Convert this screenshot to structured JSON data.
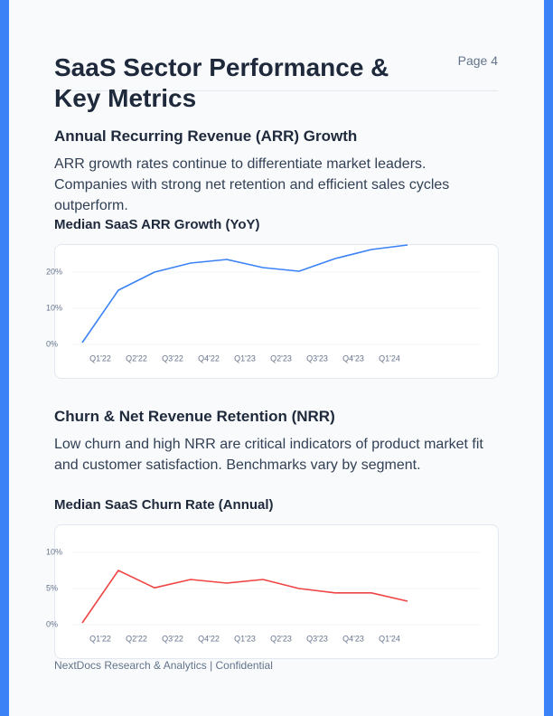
{
  "header": {
    "title": "SaaS Sector Performance & Key Metrics",
    "page": "Page 4"
  },
  "sections": [
    {
      "heading": "Annual Recurring Revenue (ARR) Growth",
      "text": "ARR growth rates continue to differentiate market leaders. Companies with strong net retention and efficient sales cycles outperform.",
      "chart": {
        "type": "line",
        "title": "Median SaaS ARR Growth (YoY)",
        "categories": [
          "Q1'22",
          "Q2'22",
          "Q3'22",
          "Q4'22",
          "Q1'23",
          "Q2'23",
          "Q3'23",
          "Q4'23",
          "Q1'24",
          null
        ],
        "values": [
          0.5,
          15,
          20,
          22.5,
          23.5,
          21.25,
          20.25,
          23.75,
          26.25,
          27.5
        ],
        "color": "#3b82f6",
        "ylim": [
          0,
          27.5
        ],
        "yticks": [
          {
            "value": 0,
            "label": "0%"
          },
          {
            "value": 10,
            "label": "10%"
          },
          {
            "value": 20,
            "label": "20%"
          }
        ],
        "grid": true
      }
    },
    {
      "heading": "Churn & Net Revenue Retention (NRR)",
      "text": "Low churn and high NRR are critical indicators of product market fit and customer satisfaction. Benchmarks vary by segment.",
      "chart": {
        "type": "line",
        "title": "Median SaaS Churn Rate (Annual)",
        "categories": [
          "Q1'22",
          "Q2'22",
          "Q3'22",
          "Q4'22",
          "Q1'23",
          "Q2'23",
          "Q3'23",
          "Q4'23",
          "Q1'24",
          null
        ],
        "values": [
          0.25,
          7.5,
          5.1,
          6.25,
          5.75,
          6.25,
          5,
          4.4,
          4.4,
          3.25
        ],
        "color": "#ef4444",
        "ylim": [
          0,
          11.25
        ],
        "yticks": [
          {
            "value": 0,
            "label": "0%"
          },
          {
            "value": 5,
            "label": "5%"
          },
          {
            "value": 10,
            "label": "10%"
          }
        ],
        "grid": true
      }
    }
  ],
  "footer": "NextDocs Research & Analytics | Confidential"
}
